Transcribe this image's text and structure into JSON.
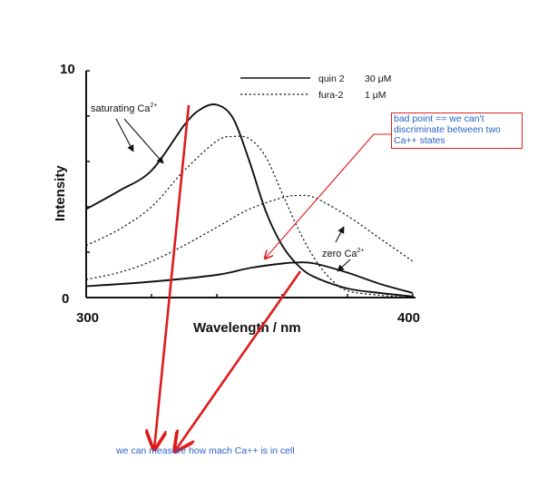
{
  "chart_data": {
    "type": "line",
    "xlabel": "Wavelength / nm",
    "ylabel": "Intensity",
    "x_ticks": [
      "300",
      "400"
    ],
    "y_ticks": [
      "0",
      "10"
    ],
    "xlim": [
      300,
      400
    ],
    "ylim": [
      0,
      10
    ],
    "grid": false,
    "legend_position": "top-right",
    "legend": [
      {
        "name": "quin 2",
        "conc": "30 μM",
        "style": "solid"
      },
      {
        "name": "fura-2",
        "conc": "1 μM",
        "style": "dashed"
      }
    ],
    "annotations": {
      "saturating": "saturating Ca",
      "saturating_sup": "2+",
      "zero": "zero Ca",
      "zero_sup": "2+"
    },
    "series": [
      {
        "name": "quin 2",
        "condition": "saturating",
        "style": "solid",
        "x": [
          300,
          310,
          320,
          330,
          335,
          340,
          345,
          350,
          355,
          360,
          365,
          370,
          380,
          390,
          400
        ],
        "y": [
          3.9,
          4.7,
          5.6,
          7.6,
          8.3,
          8.5,
          7.9,
          6.0,
          3.8,
          2.3,
          1.4,
          0.9,
          0.4,
          0.2,
          0.05
        ]
      },
      {
        "name": "quin 2",
        "condition": "zero",
        "style": "solid",
        "x": [
          300,
          320,
          340,
          350,
          360,
          365,
          370,
          380,
          390,
          400
        ],
        "y": [
          0.5,
          0.7,
          1.0,
          1.3,
          1.5,
          1.55,
          1.5,
          1.1,
          0.6,
          0.2
        ]
      },
      {
        "name": "fura-2",
        "condition": "saturating",
        "style": "dashed",
        "x": [
          300,
          310,
          320,
          330,
          340,
          345,
          350,
          355,
          360,
          365,
          370,
          375,
          380,
          390,
          400
        ],
        "y": [
          2.3,
          3.0,
          4.0,
          5.6,
          6.9,
          7.1,
          7.0,
          6.2,
          4.6,
          3.0,
          1.7,
          0.8,
          0.3,
          0.1,
          0.0
        ]
      },
      {
        "name": "fura-2",
        "condition": "zero",
        "style": "dashed",
        "x": [
          300,
          310,
          320,
          330,
          340,
          350,
          360,
          365,
          370,
          380,
          390,
          400
        ],
        "y": [
          0.8,
          1.1,
          1.6,
          2.3,
          3.1,
          3.9,
          4.4,
          4.5,
          4.4,
          3.6,
          2.6,
          1.6
        ]
      }
    ]
  },
  "notes": {
    "bad_point": "bad point == we can't discriminate between two Ca++ states",
    "measure": "we can measure how mach Ca++ is in cell"
  }
}
